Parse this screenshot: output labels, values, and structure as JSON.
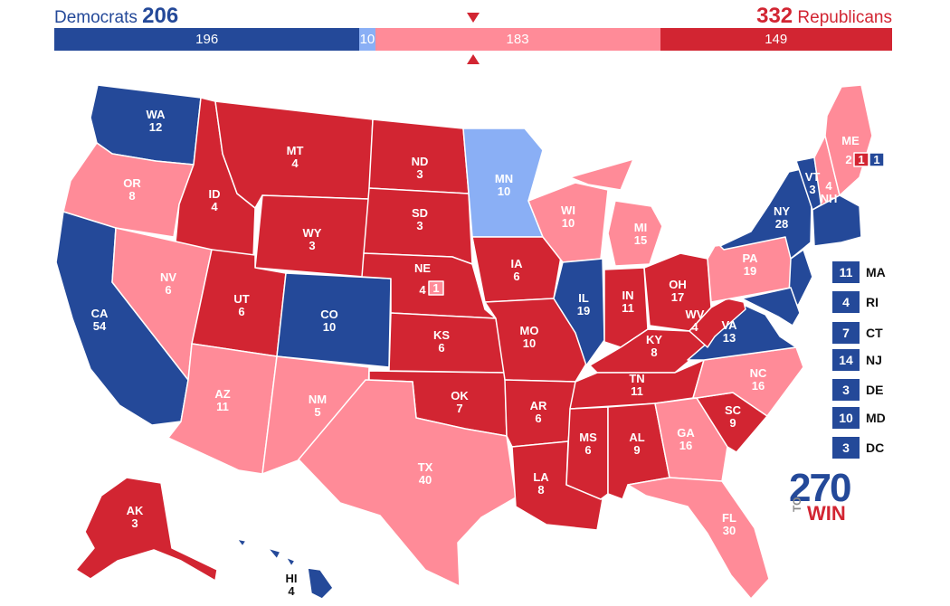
{
  "header": {
    "dem_label": "Democrats",
    "dem_total": "206",
    "rep_total": "332",
    "rep_label": "Republicans"
  },
  "bar": [
    {
      "value": 196,
      "label": "196",
      "color": "#244999"
    },
    {
      "value": 10,
      "label": "10",
      "color": "#8aaff5"
    },
    {
      "value": 183,
      "label": "183",
      "color": "#ff8b98"
    },
    {
      "value": 149,
      "label": "149",
      "color": "#d22532"
    }
  ],
  "colors": {
    "safe_d": "#244999",
    "lean_d": "#8aaff5",
    "lean_r": "#ff8b98",
    "safe_r": "#d22532",
    "border": "#ffffff"
  },
  "states": [
    {
      "abbr": "WA",
      "ev": "12",
      "cat": "safe_d"
    },
    {
      "abbr": "OR",
      "ev": "8",
      "cat": "lean_r"
    },
    {
      "abbr": "CA",
      "ev": "54",
      "cat": "safe_d"
    },
    {
      "abbr": "ID",
      "ev": "4",
      "cat": "safe_r"
    },
    {
      "abbr": "NV",
      "ev": "6",
      "cat": "lean_r"
    },
    {
      "abbr": "AZ",
      "ev": "11",
      "cat": "lean_r"
    },
    {
      "abbr": "UT",
      "ev": "6",
      "cat": "safe_r"
    },
    {
      "abbr": "MT",
      "ev": "4",
      "cat": "safe_r"
    },
    {
      "abbr": "WY",
      "ev": "3",
      "cat": "safe_r"
    },
    {
      "abbr": "CO",
      "ev": "10",
      "cat": "safe_d"
    },
    {
      "abbr": "NM",
      "ev": "5",
      "cat": "lean_r"
    },
    {
      "abbr": "ND",
      "ev": "3",
      "cat": "safe_r"
    },
    {
      "abbr": "SD",
      "ev": "3",
      "cat": "safe_r"
    },
    {
      "abbr": "NE",
      "ev": "4",
      "cat": "safe_r",
      "district": "1",
      "district_cat": "lean_r"
    },
    {
      "abbr": "KS",
      "ev": "6",
      "cat": "safe_r"
    },
    {
      "abbr": "OK",
      "ev": "7",
      "cat": "safe_r"
    },
    {
      "abbr": "TX",
      "ev": "40",
      "cat": "lean_r"
    },
    {
      "abbr": "MN",
      "ev": "10",
      "cat": "lean_d"
    },
    {
      "abbr": "IA",
      "ev": "6",
      "cat": "safe_r"
    },
    {
      "abbr": "MO",
      "ev": "10",
      "cat": "safe_r"
    },
    {
      "abbr": "AR",
      "ev": "6",
      "cat": "safe_r"
    },
    {
      "abbr": "LA",
      "ev": "8",
      "cat": "safe_r"
    },
    {
      "abbr": "WI",
      "ev": "10",
      "cat": "lean_r"
    },
    {
      "abbr": "IL",
      "ev": "19",
      "cat": "safe_d"
    },
    {
      "abbr": "MI",
      "ev": "15",
      "cat": "lean_r"
    },
    {
      "abbr": "IN",
      "ev": "11",
      "cat": "safe_r"
    },
    {
      "abbr": "OH",
      "ev": "17",
      "cat": "safe_r"
    },
    {
      "abbr": "KY",
      "ev": "8",
      "cat": "safe_r"
    },
    {
      "abbr": "TN",
      "ev": "11",
      "cat": "safe_r"
    },
    {
      "abbr": "MS",
      "ev": "6",
      "cat": "safe_r"
    },
    {
      "abbr": "AL",
      "ev": "9",
      "cat": "safe_r"
    },
    {
      "abbr": "GA",
      "ev": "16",
      "cat": "lean_r"
    },
    {
      "abbr": "FL",
      "ev": "30",
      "cat": "lean_r"
    },
    {
      "abbr": "SC",
      "ev": "9",
      "cat": "safe_r"
    },
    {
      "abbr": "NC",
      "ev": "16",
      "cat": "lean_r"
    },
    {
      "abbr": "VA",
      "ev": "13",
      "cat": "safe_d"
    },
    {
      "abbr": "WV",
      "ev": "4",
      "cat": "safe_r"
    },
    {
      "abbr": "PA",
      "ev": "19",
      "cat": "lean_r"
    },
    {
      "abbr": "NY",
      "ev": "28",
      "cat": "safe_d"
    },
    {
      "abbr": "VT",
      "ev": "3",
      "cat": "safe_d"
    },
    {
      "abbr": "NH",
      "ev": "4",
      "cat": "lean_r"
    },
    {
      "abbr": "ME",
      "ev": "2",
      "cat": "lean_r",
      "districts": [
        {
          "ev": "1",
          "cat": "safe_r"
        },
        {
          "ev": "1",
          "cat": "safe_d"
        }
      ]
    },
    {
      "abbr": "AK",
      "ev": "3",
      "cat": "safe_r"
    },
    {
      "abbr": "HI",
      "ev": "4",
      "cat": "safe_d"
    }
  ],
  "small_states": [
    {
      "ev": "11",
      "abbr": "MA"
    },
    {
      "ev": "4",
      "abbr": "RI"
    },
    {
      "ev": "7",
      "abbr": "CT"
    },
    {
      "ev": "14",
      "abbr": "NJ"
    },
    {
      "ev": "3",
      "abbr": "DE"
    },
    {
      "ev": "10",
      "abbr": "MD"
    },
    {
      "ev": "3",
      "abbr": "DC"
    }
  ],
  "logo": {
    "number": "270",
    "to": "TO",
    "win": "WIN"
  }
}
